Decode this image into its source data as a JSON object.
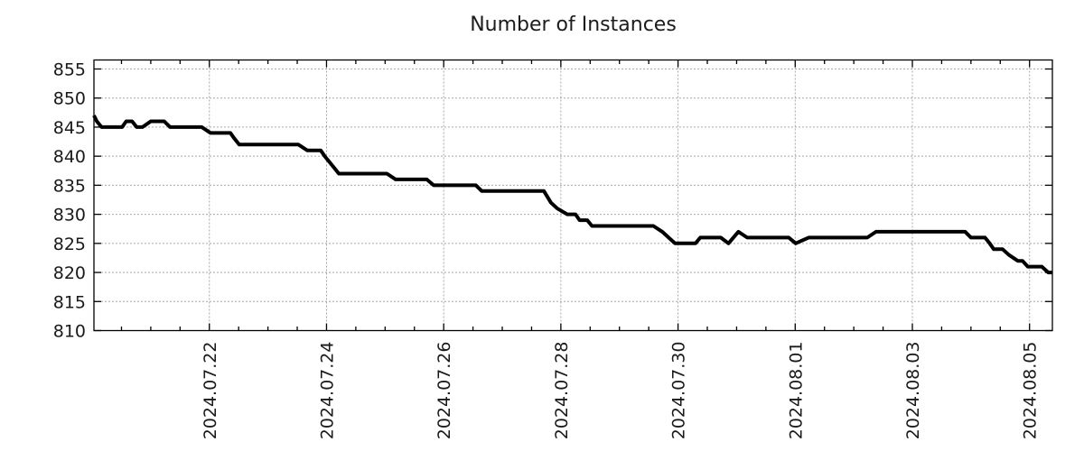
{
  "chart_data": {
    "type": "line",
    "title": "Number of Instances",
    "background": "#ffffff",
    "legend_position": "none",
    "grid": {
      "shown": true,
      "color": "#a6a6a6",
      "style": "dashed"
    },
    "x_axis": {
      "unit": "days",
      "day_offset_origin": "2024.07.20",
      "range_days": [
        0.03,
        16.39
      ],
      "major_ticks": [
        2,
        4,
        6,
        8,
        10,
        12,
        14,
        16
      ],
      "major_tick_labels": [
        "2024.07.22",
        "2024.07.24",
        "2024.07.26",
        "2024.07.28",
        "2024.07.30",
        "2024.08.01",
        "2024.08.03",
        "2024.08.05"
      ],
      "minor_tick_interval_days": 0.5,
      "tick_label_rotation": -90
    },
    "y_axis": {
      "range": [
        810,
        856.55
      ],
      "ticks": [
        810,
        815,
        820,
        825,
        830,
        835,
        840,
        845,
        850,
        855
      ]
    },
    "series": [
      {
        "name": "Number of Instances",
        "color": "#000000",
        "line_width": 4,
        "points": [
          [
            0.03,
            847
          ],
          [
            0.08,
            846
          ],
          [
            0.16,
            845
          ],
          [
            0.51,
            845
          ],
          [
            0.58,
            846
          ],
          [
            0.68,
            846
          ],
          [
            0.76,
            845
          ],
          [
            0.86,
            845
          ],
          [
            1.0,
            846
          ],
          [
            1.23,
            846
          ],
          [
            1.33,
            845
          ],
          [
            1.87,
            845
          ],
          [
            2.02,
            844
          ],
          [
            2.36,
            844
          ],
          [
            2.43,
            843
          ],
          [
            2.51,
            842
          ],
          [
            3.52,
            842
          ],
          [
            3.67,
            841
          ],
          [
            3.9,
            841
          ],
          [
            3.97,
            840
          ],
          [
            4.05,
            839
          ],
          [
            4.13,
            838
          ],
          [
            4.21,
            837
          ],
          [
            5.03,
            837
          ],
          [
            5.18,
            836
          ],
          [
            5.71,
            836
          ],
          [
            5.83,
            835
          ],
          [
            6.55,
            835
          ],
          [
            6.65,
            834
          ],
          [
            7.71,
            834
          ],
          [
            7.83,
            832
          ],
          [
            7.94,
            831
          ],
          [
            8.11,
            830
          ],
          [
            8.25,
            830
          ],
          [
            8.32,
            829
          ],
          [
            8.45,
            829
          ],
          [
            8.53,
            828
          ],
          [
            9.58,
            828
          ],
          [
            9.73,
            827
          ],
          [
            9.84,
            826
          ],
          [
            9.95,
            825
          ],
          [
            10.3,
            825
          ],
          [
            10.38,
            826
          ],
          [
            10.73,
            826
          ],
          [
            10.86,
            825
          ],
          [
            11.03,
            827
          ],
          [
            11.18,
            826
          ],
          [
            11.89,
            826
          ],
          [
            12.01,
            825
          ],
          [
            12.23,
            826
          ],
          [
            13.23,
            826
          ],
          [
            13.38,
            827
          ],
          [
            14.9,
            827
          ],
          [
            15.0,
            826
          ],
          [
            15.24,
            826
          ],
          [
            15.32,
            825
          ],
          [
            15.39,
            824
          ],
          [
            15.54,
            824
          ],
          [
            15.65,
            823
          ],
          [
            15.8,
            822
          ],
          [
            15.88,
            822
          ],
          [
            15.97,
            821
          ],
          [
            16.21,
            821
          ],
          [
            16.32,
            820
          ],
          [
            16.39,
            820
          ]
        ]
      }
    ]
  }
}
